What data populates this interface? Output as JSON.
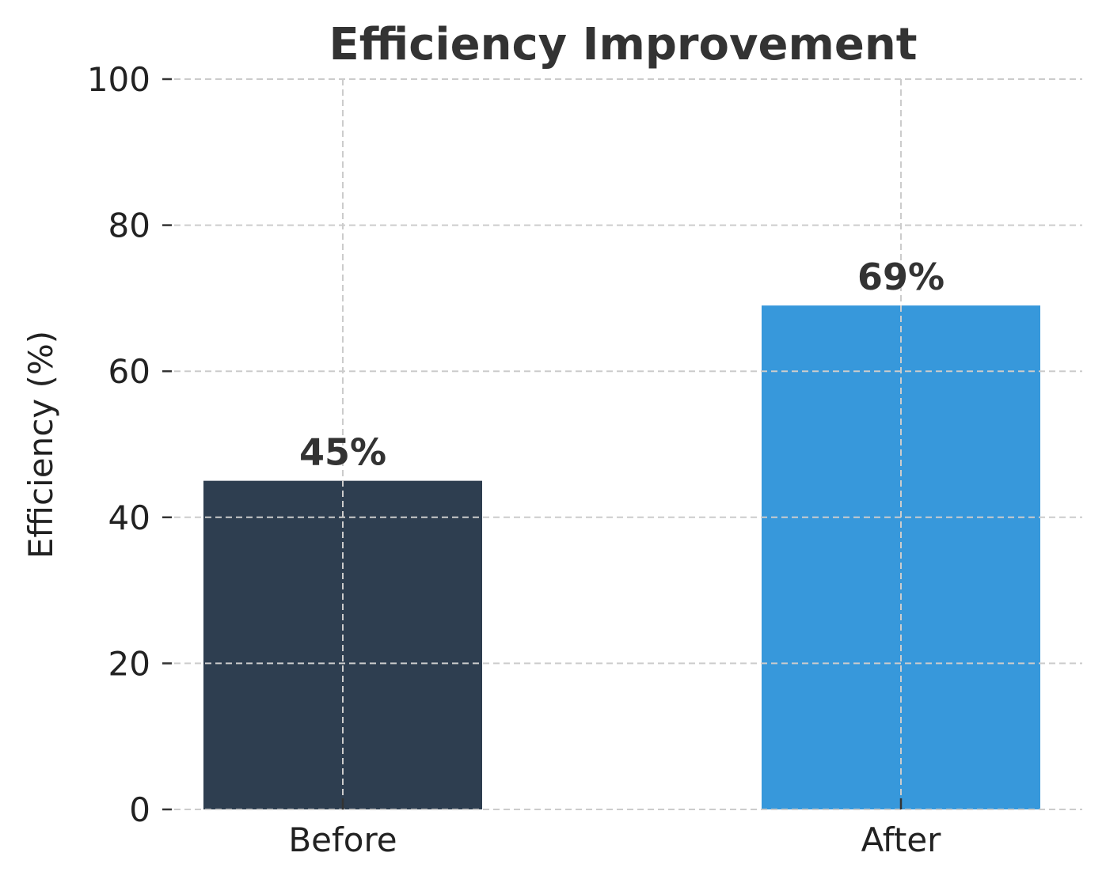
{
  "chart_data": {
    "type": "bar",
    "title": "Efficiency Improvement",
    "xlabel": "",
    "ylabel": "Efficiency (%)",
    "categories": [
      "Before",
      "After"
    ],
    "values": [
      45,
      69
    ],
    "value_labels": [
      "45%",
      "69%"
    ],
    "colors": [
      "#2e3e50",
      "#3798db"
    ],
    "ylim": [
      0,
      100
    ],
    "yticks": [
      0,
      20,
      40,
      60,
      80,
      100
    ],
    "grid": true,
    "legend": "none"
  }
}
